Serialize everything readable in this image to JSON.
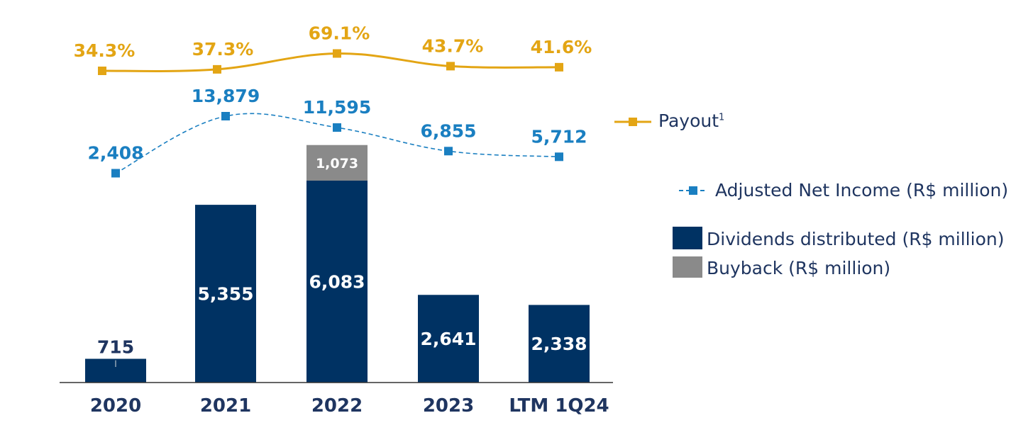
{
  "colors": {
    "dividends": "#003263",
    "buyback": "#8a8a8a",
    "net_income": "#1a7fc1",
    "payout": "#e3a514",
    "axis": "#333333",
    "text_dark": "#1f3560"
  },
  "chart_data": {
    "type": "bar",
    "categories": [
      "2020",
      "2021",
      "2022",
      "2023",
      "LTM 1Q24"
    ],
    "series": [
      {
        "name": "Dividends distributed (R$ million)",
        "type": "bar",
        "stack": "a",
        "values": [
          715,
          5355,
          6083,
          2641,
          2338
        ],
        "labels": [
          "715",
          "5,355",
          "6,083",
          "2,641",
          "2,338"
        ]
      },
      {
        "name": "Buyback (R$ million)",
        "type": "bar",
        "stack": "a",
        "values": [
          0,
          0,
          1073,
          0,
          0
        ],
        "labels": [
          "",
          "",
          "1,073",
          "",
          ""
        ]
      },
      {
        "name": "Adjusted Net Income  (R$ million)",
        "type": "line",
        "style": "dashed",
        "values": [
          2408,
          13879,
          11595,
          6855,
          5712
        ],
        "labels": [
          "2,408",
          "13,879",
          "11,595",
          "6,855",
          "5,712"
        ]
      },
      {
        "name": "Payout",
        "type": "line",
        "style": "solid",
        "values": [
          34.3,
          37.3,
          69.1,
          43.7,
          41.6
        ],
        "labels": [
          "34.3%",
          "37.3%",
          "69.1%",
          "43.7%",
          "41.6%"
        ]
      }
    ],
    "legend_position": "right",
    "grid": false
  },
  "legend": {
    "payout_label": "Payout",
    "payout_sup": "1",
    "net_income_label": "Adjusted Net Income  (R$ million)",
    "dividends_label": "Dividends distributed (R$ million)",
    "buyback_label": "Buyback (R$ million)"
  }
}
